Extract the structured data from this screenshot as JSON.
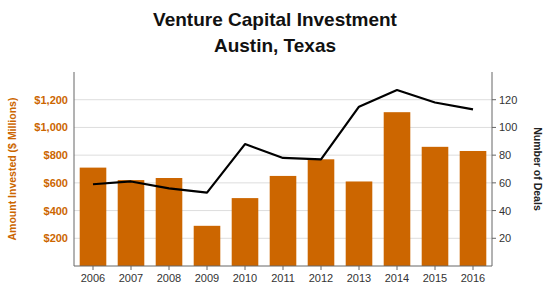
{
  "chart_data": {
    "type": "bar",
    "title": "Venture Capital Investment",
    "subtitle": "Austin, Texas",
    "categories": [
      "2006",
      "2007",
      "2008",
      "2009",
      "2010",
      "2011",
      "2012",
      "2013",
      "2014",
      "2015",
      "2016"
    ],
    "series": [
      {
        "type": "bar",
        "color": "#CC6600",
        "values": [
          710,
          620,
          635,
          290,
          490,
          650,
          770,
          610,
          1110,
          860,
          830
        ]
      },
      {
        "type": "line",
        "color": "#000000",
        "axis": "y2",
        "values": [
          59,
          61,
          56,
          53,
          88,
          78,
          77,
          115,
          127,
          118,
          113
        ]
      }
    ],
    "ylabel": "Amount Invested ($ Millions)",
    "y2label": "Number of Deals",
    "ylim": [
      0,
      1400
    ],
    "yticks": [
      {
        "value": 200,
        "label": "$200"
      },
      {
        "value": 400,
        "label": "$400"
      },
      {
        "value": 600,
        "label": "$600"
      },
      {
        "value": 800,
        "label": "$800"
      },
      {
        "value": 1000,
        "label": "$1,000"
      },
      {
        "value": 1200,
        "label": "$1,200"
      }
    ],
    "y2lim": [
      0,
      140
    ],
    "y2ticks": [
      20,
      40,
      60,
      80,
      100,
      120
    ],
    "grid": true
  }
}
